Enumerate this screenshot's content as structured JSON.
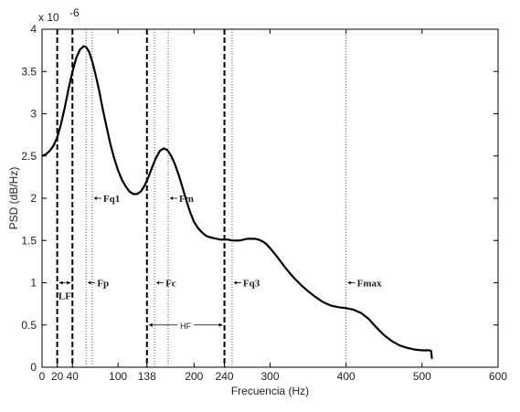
{
  "chart_data": {
    "type": "line",
    "title": "",
    "xlabel": "Frecuencia (Hz)",
    "ylabel": "PSD (dB/Hz)",
    "y_exponent": "x 10",
    "y_exponent_power": "-6",
    "xlim": [
      0,
      600
    ],
    "ylim": [
      0,
      4
    ],
    "grid": false,
    "x_ticks": [
      0,
      20,
      40,
      100,
      138,
      200,
      240,
      300,
      400,
      500,
      600
    ],
    "y_ticks": [
      0,
      0.5,
      1,
      1.5,
      2,
      2.5,
      3,
      3.5,
      4
    ],
    "series": [
      {
        "x": [
          0,
          5,
          10,
          15,
          20,
          25,
          30,
          35,
          40,
          45,
          50,
          55,
          58,
          62,
          66,
          70,
          75,
          80,
          85,
          90,
          95,
          100,
          105,
          110,
          115,
          120,
          125,
          130,
          135,
          140,
          145,
          150,
          155,
          160,
          165,
          170,
          175,
          180,
          185,
          190,
          195,
          200,
          205,
          210,
          215,
          220,
          225,
          230,
          235,
          240,
          245,
          250,
          255,
          260,
          265,
          270,
          275,
          280,
          285,
          290,
          295,
          300,
          310,
          320,
          330,
          340,
          350,
          360,
          370,
          380,
          390,
          400,
          410,
          420,
          430,
          440,
          450,
          460,
          470,
          480,
          490,
          500,
          505,
          510,
          512,
          513
        ],
        "y": [
          2.5,
          2.52,
          2.56,
          2.62,
          2.72,
          2.88,
          3.08,
          3.3,
          3.5,
          3.66,
          3.76,
          3.8,
          3.79,
          3.73,
          3.62,
          3.48,
          3.28,
          3.05,
          2.84,
          2.64,
          2.47,
          2.33,
          2.22,
          2.14,
          2.08,
          2.05,
          2.05,
          2.08,
          2.15,
          2.25,
          2.37,
          2.48,
          2.56,
          2.59,
          2.57,
          2.5,
          2.4,
          2.27,
          2.12,
          1.97,
          1.83,
          1.72,
          1.65,
          1.6,
          1.56,
          1.54,
          1.53,
          1.52,
          1.51,
          1.51,
          1.51,
          1.5,
          1.5,
          1.5,
          1.51,
          1.52,
          1.52,
          1.52,
          1.51,
          1.49,
          1.46,
          1.41,
          1.3,
          1.18,
          1.07,
          0.98,
          0.9,
          0.83,
          0.77,
          0.73,
          0.71,
          0.7,
          0.68,
          0.64,
          0.57,
          0.47,
          0.38,
          0.31,
          0.26,
          0.23,
          0.21,
          0.2,
          0.2,
          0.2,
          0.19,
          0.1
        ]
      }
    ],
    "dashed_lines": [
      20,
      40,
      138,
      240
    ],
    "dotted_lines": [
      58,
      66,
      148,
      166,
      250,
      400
    ],
    "annotations": [
      {
        "text": "Fq1",
        "x": 66,
        "y": 2.0
      },
      {
        "text": "Fm",
        "x": 166,
        "y": 2.0
      },
      {
        "text": "Fp",
        "x": 58,
        "y": 1.0
      },
      {
        "text": "Fc",
        "x": 148,
        "y": 1.0
      },
      {
        "text": "Fq3",
        "x": 250,
        "y": 1.0
      },
      {
        "text": "Fmax",
        "x": 400,
        "y": 1.0
      }
    ],
    "bands": [
      {
        "text": "LF",
        "x0": 20,
        "x1": 40,
        "y": 1.0
      },
      {
        "text": "HF",
        "x0": 138,
        "x1": 240,
        "y": 0.5
      }
    ]
  }
}
